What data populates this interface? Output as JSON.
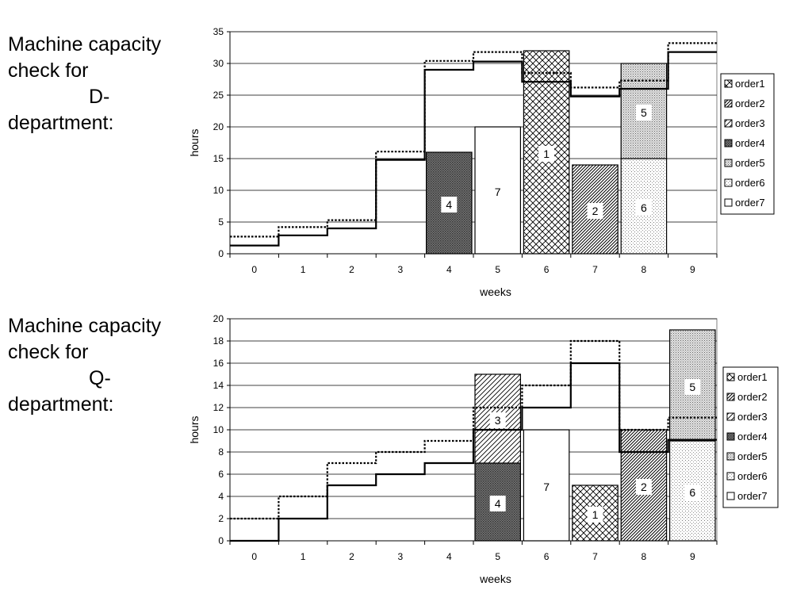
{
  "panels": [
    {
      "title_lines": [
        "Machine capacity",
        "check for",
        "D-",
        "department:"
      ],
      "chart_data": {
        "type": "bar",
        "xlabel": "weeks",
        "ylabel": "hours",
        "ylim": [
          0,
          35
        ],
        "yticks": [
          0,
          5,
          10,
          15,
          20,
          25,
          30,
          35
        ],
        "categories": [
          "0",
          "1",
          "2",
          "3",
          "4",
          "5",
          "6",
          "7",
          "8",
          "9"
        ],
        "grid": true,
        "legend_position": "right",
        "orders": [
          {
            "name": "order1",
            "pattern": "crosshatch"
          },
          {
            "name": "order2",
            "pattern": "diagonal-dense"
          },
          {
            "name": "order3",
            "pattern": "diagonal"
          },
          {
            "name": "order4",
            "pattern": "dark-dots"
          },
          {
            "name": "order5",
            "pattern": "light-dots"
          },
          {
            "name": "order6",
            "pattern": "fine-dots"
          },
          {
            "name": "order7",
            "pattern": "white"
          }
        ],
        "bars": [
          {
            "week": 4,
            "segments": [
              {
                "order": "order4",
                "value": 16,
                "label": "4"
              }
            ]
          },
          {
            "week": 5,
            "segments": [
              {
                "order": "order7",
                "value": 20,
                "label": "7"
              }
            ]
          },
          {
            "week": 6,
            "segments": [
              {
                "order": "order1",
                "value": 32,
                "label": "1"
              }
            ]
          },
          {
            "week": 7,
            "segments": [
              {
                "order": "order2",
                "value": 14,
                "label": "2"
              }
            ]
          },
          {
            "week": 8,
            "segments": [
              {
                "order": "order6",
                "value": 15,
                "label": "6"
              },
              {
                "order": "order5",
                "value": 15,
                "label": "5"
              }
            ]
          }
        ],
        "solid_line": [
          1.3,
          2.9,
          4.0,
          14.8,
          29.0,
          30.3,
          27.1,
          24.8,
          26.0,
          31.8
        ],
        "dotted_line": [
          2.7,
          4.2,
          5.3,
          16.1,
          30.4,
          31.8,
          28.5,
          26.2,
          27.3,
          33.2
        ]
      }
    },
    {
      "title_lines": [
        "Machine capacity",
        "check for",
        "Q-",
        "department:"
      ],
      "chart_data": {
        "type": "bar",
        "xlabel": "weeks",
        "ylabel": "hours",
        "ylim": [
          0,
          20
        ],
        "yticks": [
          0,
          2,
          4,
          6,
          8,
          10,
          12,
          14,
          16,
          18,
          20
        ],
        "categories": [
          "0",
          "1",
          "2",
          "3",
          "4",
          "5",
          "6",
          "7",
          "8",
          "9"
        ],
        "grid": true,
        "legend_position": "right",
        "orders": [
          {
            "name": "order1",
            "pattern": "crosshatch"
          },
          {
            "name": "order2",
            "pattern": "diagonal-dense"
          },
          {
            "name": "order3",
            "pattern": "diagonal"
          },
          {
            "name": "order4",
            "pattern": "dark-dots"
          },
          {
            "name": "order5",
            "pattern": "light-dots"
          },
          {
            "name": "order6",
            "pattern": "fine-dots"
          },
          {
            "name": "order7",
            "pattern": "white"
          }
        ],
        "bars": [
          {
            "week": 5,
            "segments": [
              {
                "order": "order4",
                "value": 7,
                "label": "4"
              },
              {
                "order": "order3",
                "value": 8,
                "label": "3"
              }
            ]
          },
          {
            "week": 6,
            "segments": [
              {
                "order": "order7",
                "value": 10,
                "label": "7"
              }
            ]
          },
          {
            "week": 7,
            "segments": [
              {
                "order": "order1",
                "value": 5,
                "label": "1"
              }
            ]
          },
          {
            "week": 8,
            "segments": [
              {
                "order": "order2",
                "value": 10,
                "label": "2"
              }
            ]
          },
          {
            "week": 9,
            "segments": [
              {
                "order": "order6",
                "value": 9,
                "label": "6"
              },
              {
                "order": "order5",
                "value": 10,
                "label": "5"
              }
            ]
          }
        ],
        "solid_line": [
          0,
          2,
          5,
          6,
          7,
          10,
          12,
          16,
          8,
          9.1
        ],
        "dotted_line": [
          2,
          4,
          7,
          8,
          9,
          12,
          14,
          18,
          10,
          11.1
        ]
      }
    }
  ]
}
